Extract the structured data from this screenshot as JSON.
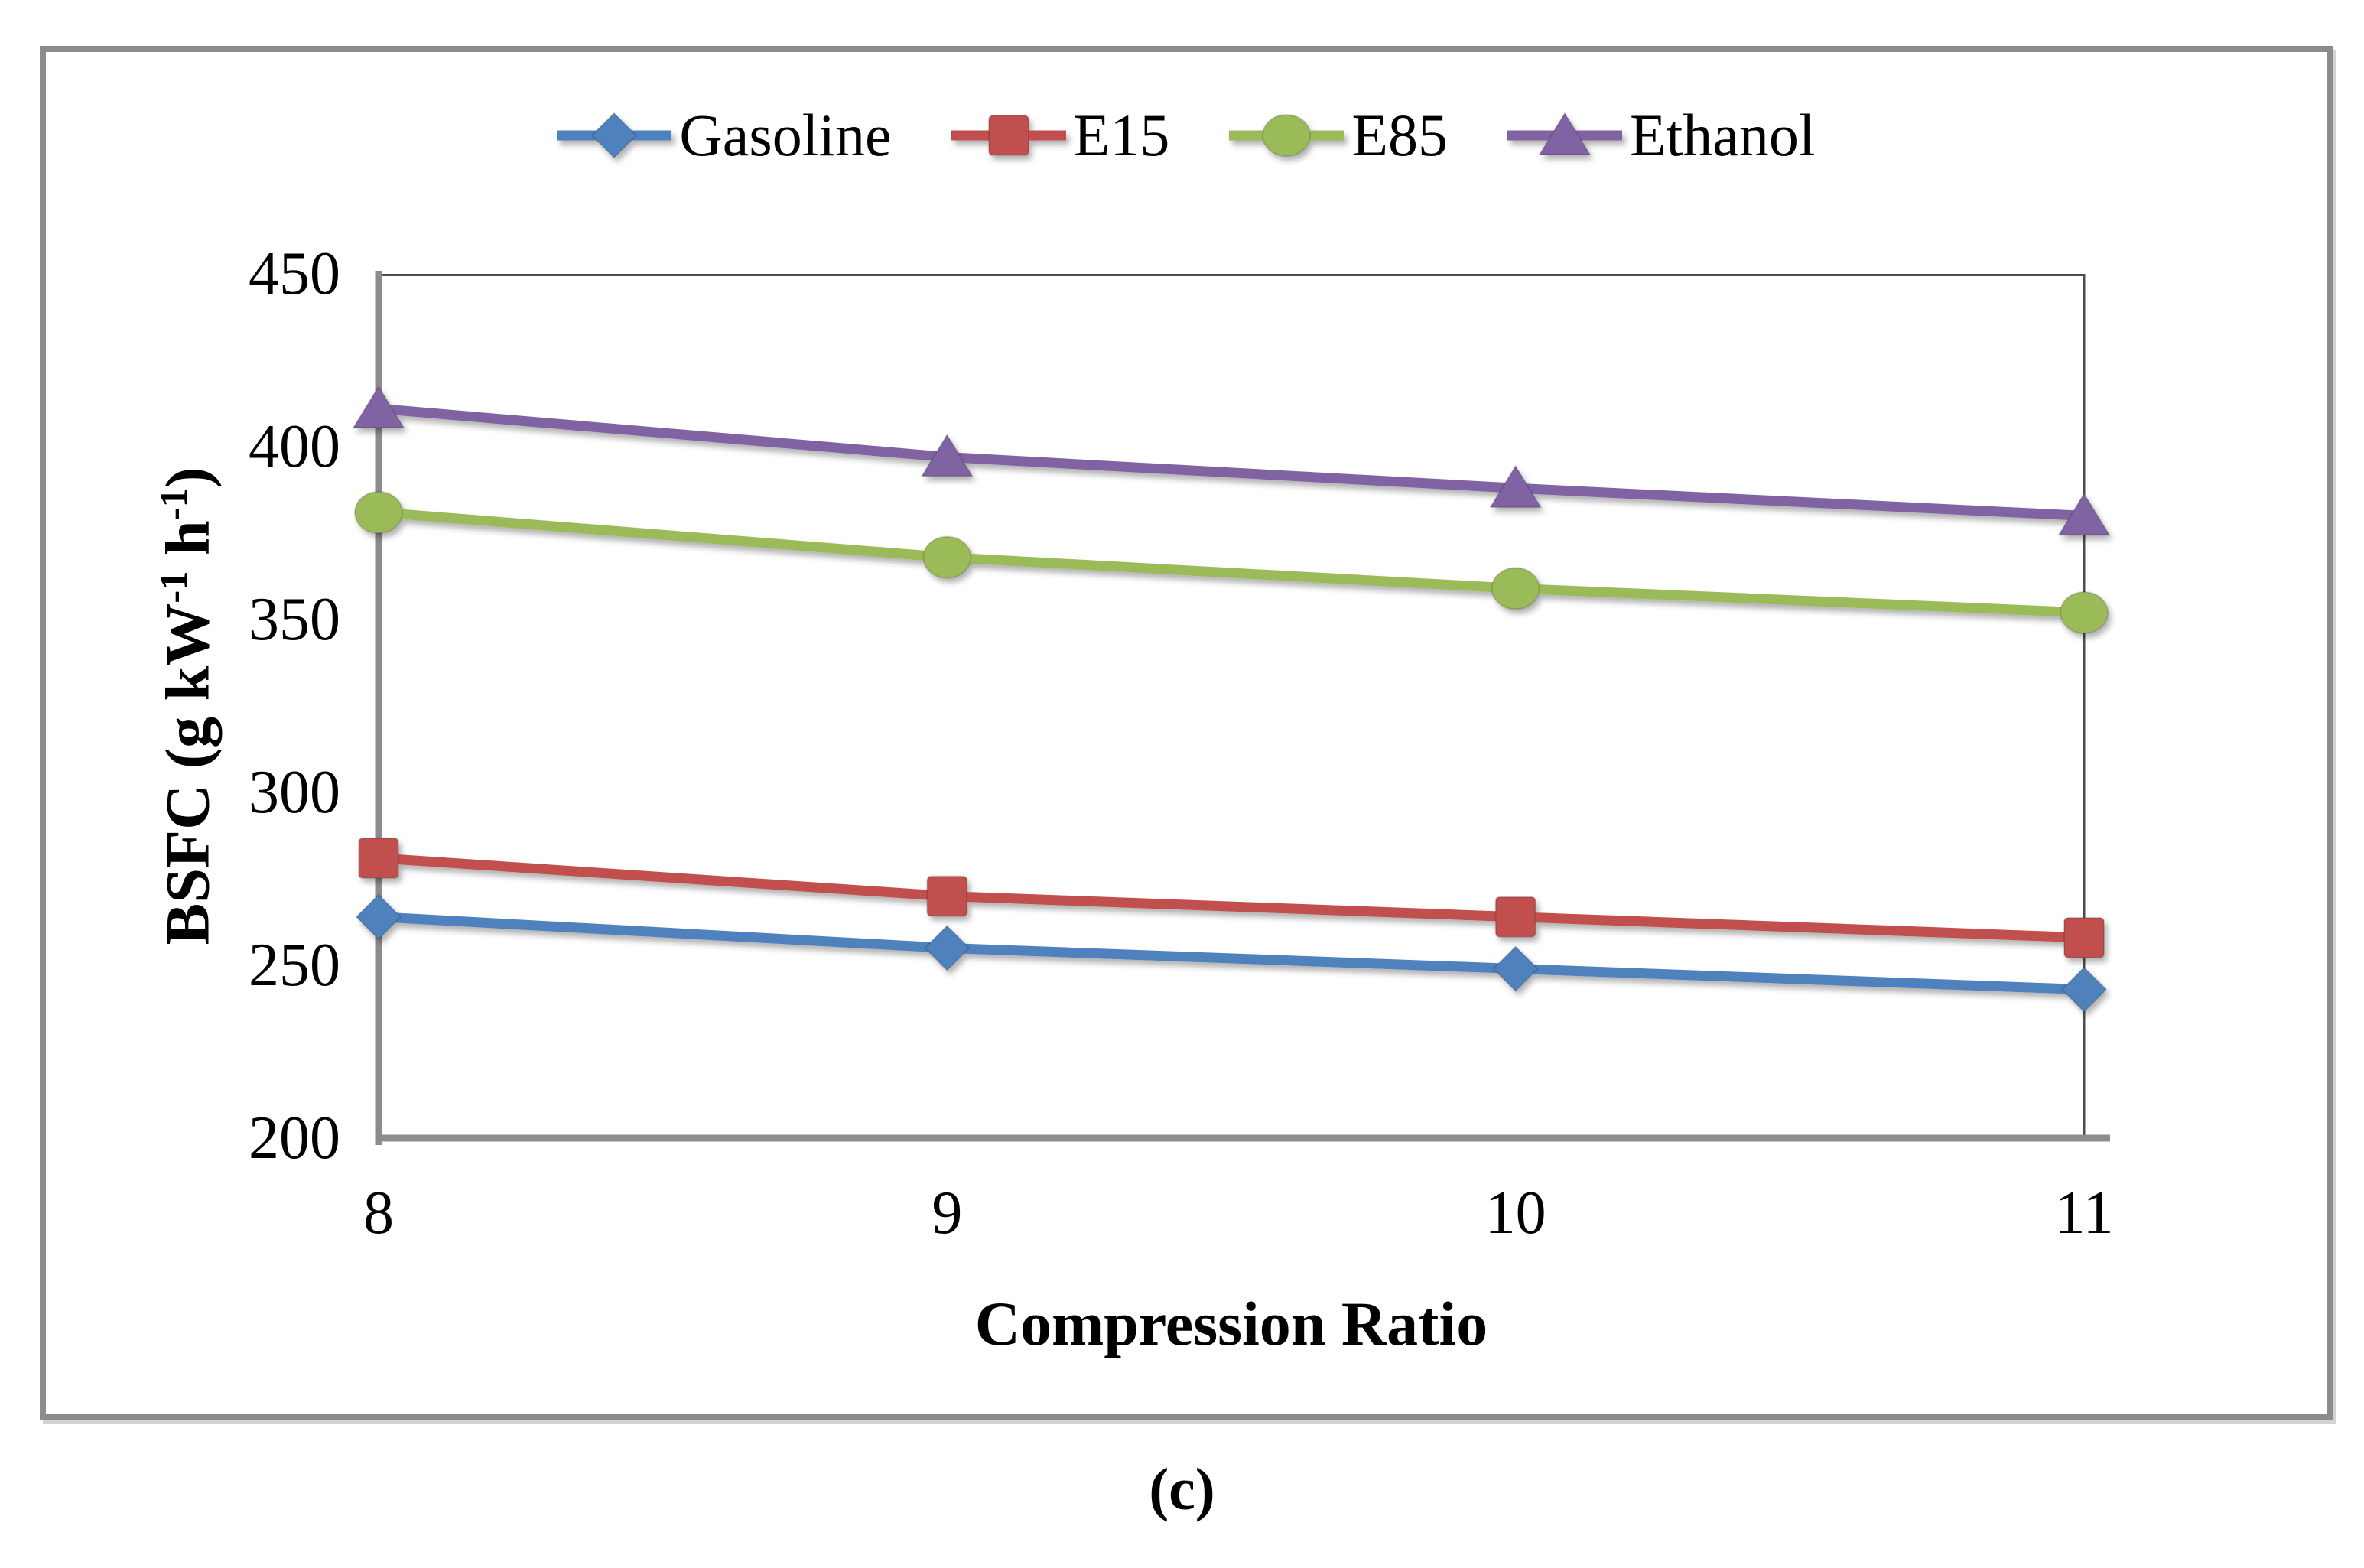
{
  "figure": {
    "caption": "(c)"
  },
  "chart_data": {
    "type": "line",
    "title": "",
    "xlabel": "Compression Ratio",
    "ylabel": "BSFC (g kW-1 h-1)",
    "ylabel_parts": {
      "pre": "BSFC (g kW",
      "sup1": "-1",
      "mid": " h",
      "sup2": "-1",
      "post": ")"
    },
    "x": [
      8,
      9,
      10,
      11
    ],
    "xlim": [
      8,
      11
    ],
    "ylim": [
      200,
      450
    ],
    "yticks": [
      450,
      400,
      350,
      300,
      250,
      200
    ],
    "ytick_step": 50,
    "grid": false,
    "legend_position": "top-center",
    "series": [
      {
        "name": "Gasoline",
        "color": "#4F81BD",
        "marker": "diamond",
        "values": [
          264,
          255,
          249,
          243
        ]
      },
      {
        "name": "E15",
        "color": "#C0504D",
        "marker": "square",
        "values": [
          281,
          270,
          264,
          258
        ]
      },
      {
        "name": "E85",
        "color": "#9BBB59",
        "marker": "circle",
        "values": [
          381,
          368,
          359,
          352
        ]
      },
      {
        "name": "Ethanol",
        "color": "#8064A2",
        "marker": "triangle",
        "values": [
          411,
          397,
          388,
          380
        ]
      }
    ],
    "axis_color": "#8c8c8c",
    "frame_color": "#4d4d4d",
    "line_width": 13
  }
}
